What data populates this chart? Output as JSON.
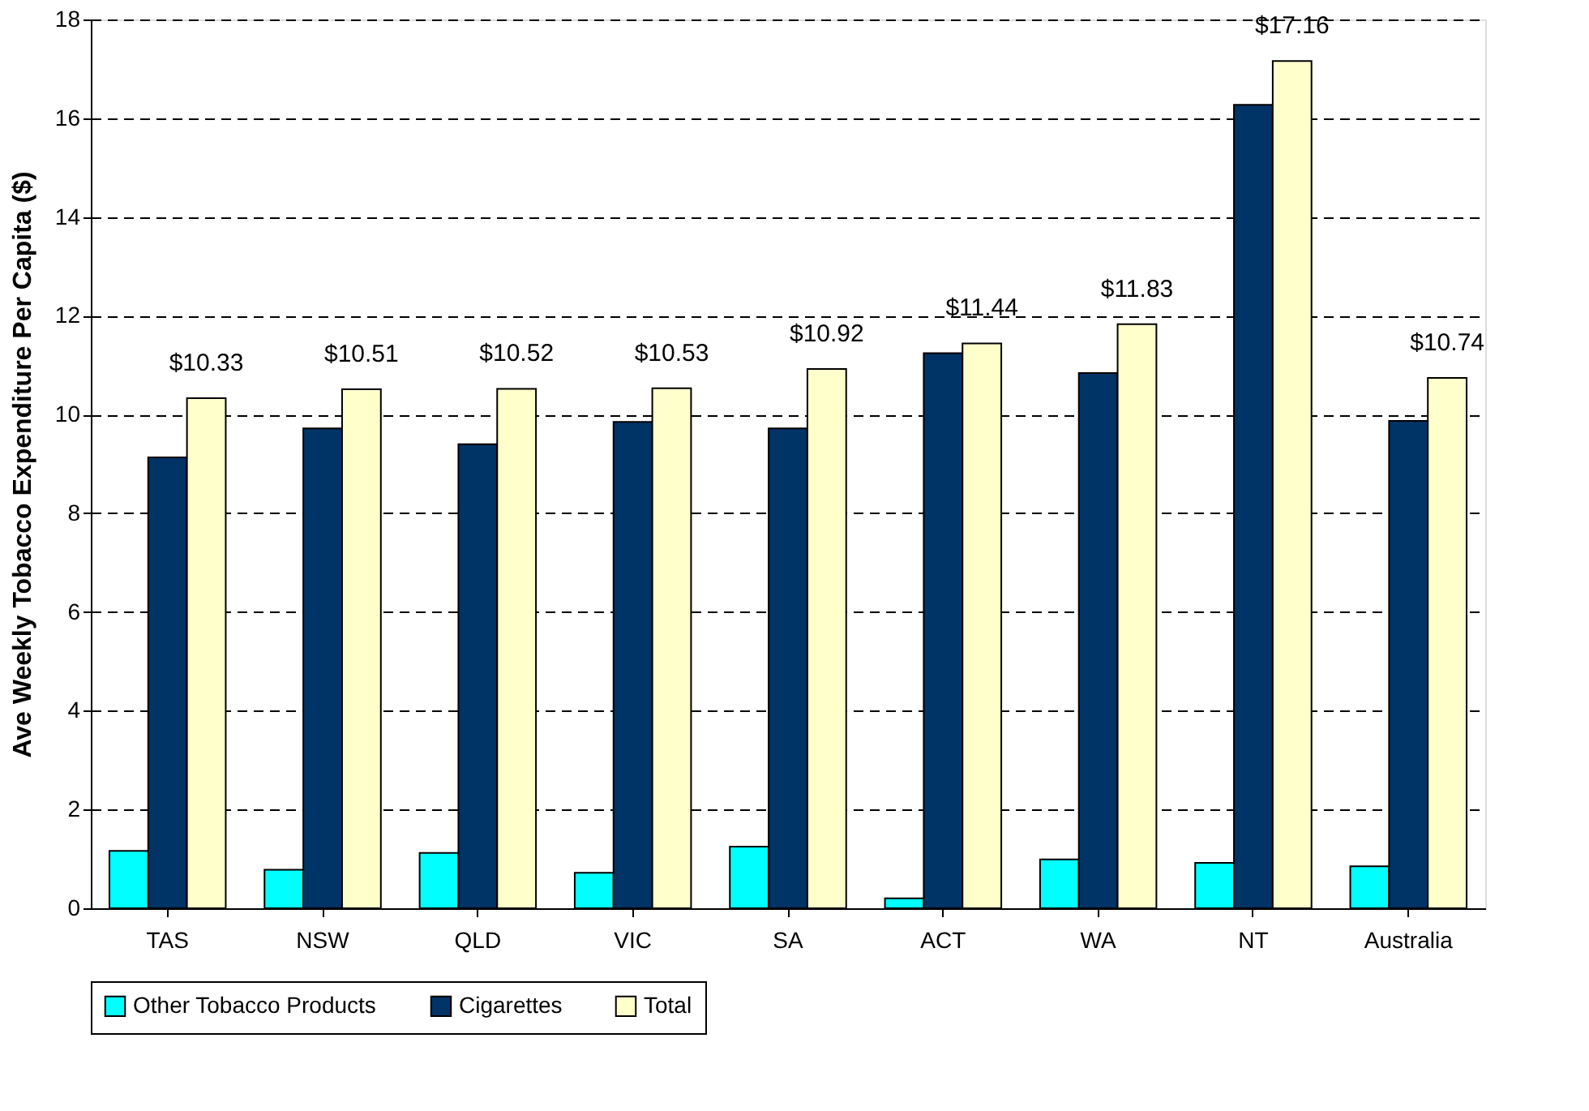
{
  "chart_data": {
    "type": "bar",
    "ylabel": "Ave Weekly Tobacco Expenditure Per Capita ($)",
    "categories": [
      "TAS",
      "NSW",
      "QLD",
      "VIC",
      "SA",
      "ACT",
      "WA",
      "NT",
      "Australia"
    ],
    "series": [
      {
        "name": "Other Tobacco Products",
        "color": "#00ffff",
        "values": [
          1.16,
          0.78,
          1.12,
          0.72,
          1.25,
          0.2,
          0.99,
          0.92,
          0.85
        ]
      },
      {
        "name": "Cigarettes",
        "color": "#003366",
        "values": [
          9.13,
          9.72,
          9.4,
          9.85,
          9.72,
          11.24,
          10.84,
          16.27,
          9.87
        ]
      },
      {
        "name": "Total",
        "color": "#ffffcc",
        "values": [
          10.33,
          10.51,
          10.52,
          10.53,
          10.92,
          11.44,
          11.83,
          17.16,
          10.74
        ],
        "value_labels": [
          "$10.33",
          "$10.51",
          "$10.52",
          "$10.53",
          "$10.92",
          "$11.44",
          "$11.83",
          "$17.16",
          "$10.74"
        ]
      }
    ],
    "ylim": [
      0,
      18
    ],
    "yticks": [
      0,
      2,
      4,
      6,
      8,
      10,
      12,
      14,
      16,
      18
    ],
    "grid": "y",
    "legend": "bottom"
  }
}
